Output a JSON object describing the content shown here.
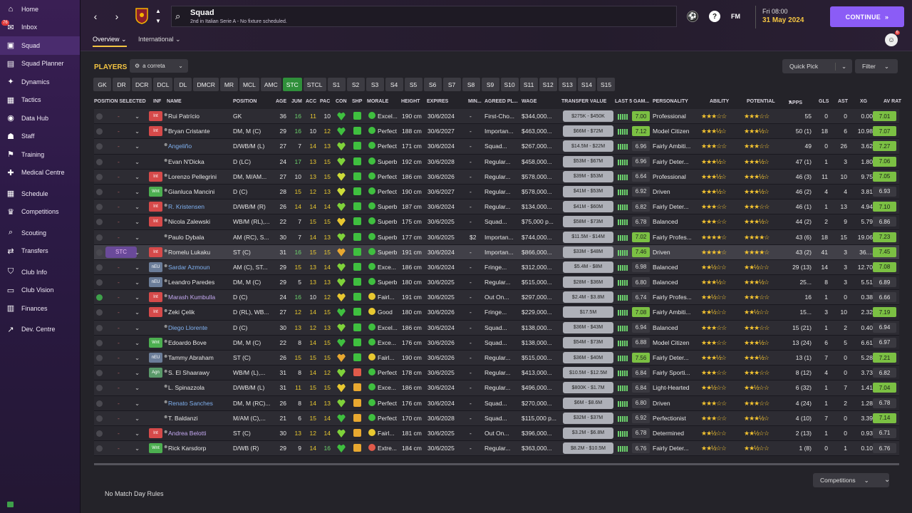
{
  "sidebar": {
    "items": [
      {
        "label": "Home",
        "icon": "home-icon",
        "glyph": "⌂"
      },
      {
        "label": "Inbox",
        "icon": "inbox-icon",
        "glyph": "✉",
        "badge": "76"
      },
      {
        "label": "Squad",
        "icon": "shirt-icon",
        "glyph": "▣",
        "active": true
      },
      {
        "label": "Squad Planner",
        "icon": "planner-icon",
        "glyph": "▤"
      },
      {
        "label": "Dynamics",
        "icon": "dynamics-icon",
        "glyph": "✦"
      },
      {
        "label": "Tactics",
        "icon": "tactics-icon",
        "glyph": "▦"
      },
      {
        "label": "Data Hub",
        "icon": "data-hub-icon",
        "glyph": "◉"
      },
      {
        "label": "Staff",
        "icon": "staff-icon",
        "glyph": "☗"
      },
      {
        "label": "Training",
        "icon": "training-icon",
        "glyph": "⚑"
      },
      {
        "label": "Medical Centre",
        "icon": "medical-icon",
        "glyph": "✚"
      },
      {
        "label": "Schedule",
        "icon": "schedule-icon",
        "glyph": "▦",
        "gap": true
      },
      {
        "label": "Competitions",
        "icon": "trophy-icon",
        "glyph": "♛"
      },
      {
        "label": "Scouting",
        "icon": "scouting-icon",
        "glyph": "⌕",
        "gap": true
      },
      {
        "label": "Transfers",
        "icon": "transfers-icon",
        "glyph": "⇄"
      },
      {
        "label": "Club Info",
        "icon": "club-info-icon",
        "glyph": "⛉",
        "gap": true
      },
      {
        "label": "Club Vision",
        "icon": "club-vision-icon",
        "glyph": "▭"
      },
      {
        "label": "Finances",
        "icon": "finances-icon",
        "glyph": "▥"
      },
      {
        "label": "Dev. Centre",
        "icon": "dev-centre-icon",
        "glyph": "↗",
        "gap": true
      }
    ]
  },
  "header": {
    "title": "Squad",
    "subtitle": "2nd in Italian Serie A - No fixture scheduled.",
    "fm_label": "FM",
    "date_day": "Fri 08:00",
    "date": "31 May 2024",
    "continue_label": "CONTINUE",
    "user_badge": "6"
  },
  "subtabs": [
    {
      "label": "Overview",
      "active": true
    },
    {
      "label": "International"
    }
  ],
  "players_title": "PLAYERS",
  "view_select": "a correta",
  "quick_pick": "Quick Pick",
  "filter": "Filter",
  "positions": [
    "GK",
    "DR",
    "DCR",
    "DCL",
    "DL",
    "DMCR",
    "MR",
    "MCL",
    "AMC",
    "STC",
    "STCL",
    "S1",
    "S2",
    "S3",
    "S4",
    "S5",
    "S6",
    "S7",
    "S8",
    "S9",
    "S10",
    "S11",
    "S12",
    "S13",
    "S14",
    "S15"
  ],
  "active_position": "STC",
  "columns": {
    "pos_sel": "POSITION SELECTED",
    "inf": "INF",
    "name": "NAME",
    "position": "POSITION",
    "age": "AGE",
    "jum": "JUM",
    "acc": "ACC",
    "pac": "PAC",
    "con": "CON",
    "shp": "SHP",
    "morale": "MORALE",
    "height": "HEIGHT",
    "expires": "EXPIRES",
    "min": "MIN...",
    "agreed": "AGREED PL...",
    "wage": "WAGE",
    "tv": "TRANSFER VALUE",
    "last5": "LAST 5 GAM...",
    "personality": "PERSONALITY",
    "ability": "ABILITY",
    "potential": "POTENTIAL",
    "apps": "APPS",
    "gls": "GLS",
    "ast": "AST",
    "xg": "XG",
    "avrat": "AV RAT"
  },
  "players": [
    {
      "sel": "-",
      "inf": "Int",
      "name": "Rui Patrício",
      "pos": "GK",
      "age": "36",
      "jum": "16",
      "acc": "11",
      "pac": "10",
      "morale": "Excel...",
      "height": "190 cm",
      "expires": "30/6/2024",
      "min": "-",
      "agreed": "First-Cho...",
      "wage": "$344,000...",
      "tv": "$275K - $450K",
      "last5": "7.00",
      "pers": "Professional",
      "ab": "★★★☆☆",
      "pot": "★★★☆☆",
      "apps": "55",
      "gls": "0",
      "ast": "0",
      "xg": "0.00",
      "av": "7.01"
    },
    {
      "sel": "-",
      "inf": "Int",
      "name": "Bryan Cristante",
      "pos": "DM, M (C)",
      "age": "29",
      "jum": "16",
      "acc": "10",
      "pac": "12",
      "morale": "Perfect",
      "height": "188 cm",
      "expires": "30/6/2027",
      "min": "-",
      "agreed": "Importan...",
      "wage": "$463,000...",
      "tv": "$66M - $72M",
      "last5": "7.12",
      "pers": "Model Citizen",
      "ab": "★★★½☆",
      "pot": "★★★½☆",
      "apps": "50 (1)",
      "gls": "18",
      "ast": "6",
      "xg": "10.98",
      "av": "7.07"
    },
    {
      "sel": "-",
      "inf": "",
      "name": "Angeliño",
      "pos": "D/WB/M (L)",
      "age": "27",
      "jum": "7",
      "acc": "14",
      "pac": "13",
      "morale": "Perfect",
      "height": "171 cm",
      "expires": "30/6/2024",
      "min": "-",
      "agreed": "Squad...",
      "wage": "$267,000...",
      "tv": "$14.5M - $22M",
      "last5": "6.96",
      "pers": "Fairly Ambiti...",
      "ab": "★★★☆☆",
      "pot": "★★★☆☆",
      "apps": "49",
      "gls": "0",
      "ast": "26",
      "xg": "3.62",
      "av": "7.27"
    },
    {
      "sel": "-",
      "inf": "",
      "name": "Evan N'Dicka",
      "pos": "D (LC)",
      "age": "24",
      "jum": "17",
      "acc": "13",
      "pac": "15",
      "morale": "Superb",
      "height": "192 cm",
      "expires": "30/6/2028",
      "min": "-",
      "agreed": "Regular...",
      "wage": "$458,000...",
      "tv": "$53M - $67M",
      "last5": "6.96",
      "pers": "Fairly Deter...",
      "ab": "★★★½☆",
      "pot": "★★★½☆",
      "apps": "47 (1)",
      "gls": "1",
      "ast": "3",
      "xg": "1.80",
      "av": "7.06"
    },
    {
      "sel": "-",
      "inf": "Int",
      "name": "Lorenzo Pellegrini",
      "pos": "DM, M/AM...",
      "age": "27",
      "jum": "10",
      "acc": "13",
      "pac": "15",
      "morale": "Perfect",
      "height": "186 cm",
      "expires": "30/6/2026",
      "min": "-",
      "agreed": "Regular...",
      "wage": "$578,000...",
      "tv": "$39M - $53M",
      "last5": "6.64",
      "pers": "Professional",
      "ab": "★★★½☆",
      "pot": "★★★½☆",
      "apps": "46 (3)",
      "gls": "11",
      "ast": "10",
      "xg": "9.75",
      "av": "7.05"
    },
    {
      "sel": "-",
      "inf": "Wnt",
      "name": "Gianluca Mancini",
      "pos": "D (C)",
      "age": "28",
      "jum": "15",
      "acc": "12",
      "pac": "13",
      "morale": "Perfect",
      "height": "190 cm",
      "expires": "30/6/2027",
      "min": "-",
      "agreed": "Regular...",
      "wage": "$578,000...",
      "tv": "$41M - $53M",
      "last5": "6.92",
      "pers": "Driven",
      "ab": "★★★½☆",
      "pot": "★★★½☆",
      "apps": "46 (2)",
      "gls": "4",
      "ast": "4",
      "xg": "3.81",
      "av": "6.93"
    },
    {
      "sel": "-",
      "inf": "Int",
      "name": "R. Kristensen",
      "pos": "D/WB/M (R)",
      "age": "26",
      "jum": "14",
      "acc": "14",
      "pac": "14",
      "morale": "Superb",
      "height": "187 cm",
      "expires": "30/6/2024",
      "min": "-",
      "agreed": "Regular...",
      "wage": "$134,000...",
      "tv": "$41M - $60M",
      "last5": "6.82",
      "pers": "Fairly Deter...",
      "ab": "★★★☆☆",
      "pot": "★★★☆☆",
      "apps": "46 (1)",
      "gls": "1",
      "ast": "13",
      "xg": "4.94",
      "av": "7.10"
    },
    {
      "sel": "-",
      "inf": "Int",
      "name": "Nicola Zalewski",
      "pos": "WB/M (RL),...",
      "age": "22",
      "jum": "7",
      "acc": "15",
      "pac": "15",
      "morale": "Superb",
      "height": "175 cm",
      "expires": "30/6/2025",
      "min": "-",
      "agreed": "Squad...",
      "wage": "$75,000 p...",
      "tv": "$58M - $73M",
      "last5": "6.78",
      "pers": "Balanced",
      "ab": "★★★☆☆",
      "pot": "★★★½☆",
      "apps": "44 (2)",
      "gls": "2",
      "ast": "9",
      "xg": "5.79",
      "av": "6.86"
    },
    {
      "sel": "-",
      "inf": "",
      "name": "Paulo Dybala",
      "pos": "AM (RC), S...",
      "age": "30",
      "jum": "7",
      "acc": "14",
      "pac": "13",
      "morale": "Superb",
      "height": "177 cm",
      "expires": "30/6/2025",
      "min": "$2...",
      "agreed": "Importan...",
      "wage": "$744,000...",
      "tv": "$11.5M - $14M",
      "last5": "7.02",
      "pers": "Fairly Profes...",
      "ab": "★★★★☆",
      "pot": "★★★★☆",
      "apps": "43 (6)",
      "gls": "18",
      "ast": "15",
      "xg": "19.06",
      "av": "7.23"
    },
    {
      "sel": "STC",
      "inf": "Int",
      "name": "Romelu Lukaku",
      "pos": "ST (C)",
      "age": "31",
      "jum": "16",
      "acc": "15",
      "pac": "15",
      "morale": "Superb",
      "height": "191 cm",
      "expires": "30/6/2024",
      "min": "-",
      "agreed": "Importan...",
      "wage": "$866,000...",
      "tv": "$33M - $48M",
      "last5": "7.46",
      "pers": "Driven",
      "ab": "★★★★☆",
      "pot": "★★★★☆",
      "apps": "43 (2)",
      "gls": "41",
      "ast": "3",
      "xg": "36....",
      "av": "7.45",
      "selected": true
    },
    {
      "sel": "-",
      "inf": "nEU",
      "name": "Sardar Azmoun",
      "pos": "AM (C), ST...",
      "age": "29",
      "jum": "15",
      "acc": "13",
      "pac": "14",
      "morale": "Exce...",
      "height": "186 cm",
      "expires": "30/6/2024",
      "min": "-",
      "agreed": "Fringe...",
      "wage": "$312,000...",
      "tv": "$5.4M - $8M",
      "last5": "6.98",
      "pers": "Balanced",
      "ab": "★★½☆☆",
      "pot": "★★½☆☆",
      "apps": "29 (13)",
      "gls": "14",
      "ast": "3",
      "xg": "12.70",
      "av": "7.08"
    },
    {
      "sel": "-",
      "inf": "nEU",
      "name": "Leandro Paredes",
      "pos": "DM, M (C)",
      "age": "29",
      "jum": "5",
      "acc": "13",
      "pac": "13",
      "morale": "Superb",
      "height": "180 cm",
      "expires": "30/6/2025",
      "min": "-",
      "agreed": "Regular...",
      "wage": "$515,000...",
      "tv": "$28M - $36M",
      "last5": "6.80",
      "pers": "Balanced",
      "ab": "★★★½☆",
      "pot": "★★★½☆",
      "apps": "25...",
      "gls": "8",
      "ast": "3",
      "xg": "5.51",
      "av": "6.89"
    },
    {
      "sel": "-",
      "inf": "Int",
      "name": "Marash Kumbulla",
      "pos": "D (C)",
      "age": "24",
      "jum": "16",
      "acc": "10",
      "pac": "12",
      "morale": "Fairl...",
      "height": "191 cm",
      "expires": "30/6/2025",
      "min": "-",
      "agreed": "Out On...",
      "wage": "$297,000...",
      "tv": "$2.4M - $3.8M",
      "last5": "6.74",
      "pers": "Fairly Profes...",
      "ab": "★★½☆☆",
      "pot": "★★★☆☆",
      "apps": "16",
      "gls": "1",
      "ast": "0",
      "xg": "0.38",
      "av": "6.66",
      "checked": true
    },
    {
      "sel": "-",
      "inf": "Int",
      "name": "Zeki Çelik",
      "pos": "D (RL), WB...",
      "age": "27",
      "jum": "12",
      "acc": "14",
      "pac": "15",
      "morale": "Good",
      "height": "180 cm",
      "expires": "30/6/2026",
      "min": "-",
      "agreed": "Fringe...",
      "wage": "$229,000...",
      "tv": "$17.5M",
      "last5": "7.08",
      "pers": "Fairly Ambiti...",
      "ab": "★★½☆☆",
      "pot": "★★½☆☆",
      "apps": "15...",
      "gls": "3",
      "ast": "10",
      "xg": "2.32",
      "av": "7.19"
    },
    {
      "sel": "-",
      "inf": "",
      "name": "Diego Llorente",
      "pos": "D (C)",
      "age": "30",
      "jum": "13",
      "acc": "12",
      "pac": "13",
      "morale": "Excel...",
      "height": "186 cm",
      "expires": "30/6/2024",
      "min": "-",
      "agreed": "Squad...",
      "wage": "$138,000...",
      "tv": "$36M - $43M",
      "last5": "6.94",
      "pers": "Balanced",
      "ab": "★★★☆☆",
      "pot": "★★★☆☆",
      "apps": "15 (21)",
      "gls": "1",
      "ast": "2",
      "xg": "0.40",
      "av": "6.94"
    },
    {
      "sel": "-",
      "inf": "Wnt",
      "name": "Edoardo Bove",
      "pos": "DM, M (C)",
      "age": "22",
      "jum": "8",
      "acc": "14",
      "pac": "15",
      "morale": "Exce...",
      "height": "176 cm",
      "expires": "30/6/2026",
      "min": "-",
      "agreed": "Squad...",
      "wage": "$138,000...",
      "tv": "$54M - $73M",
      "last5": "6.88",
      "pers": "Model Citizen",
      "ab": "★★★☆☆",
      "pot": "★★★½☆",
      "apps": "13 (24)",
      "gls": "6",
      "ast": "5",
      "xg": "6.61",
      "av": "6.97"
    },
    {
      "sel": "-",
      "inf": "nEU",
      "name": "Tammy Abraham",
      "pos": "ST (C)",
      "age": "26",
      "jum": "15",
      "acc": "15",
      "pac": "15",
      "morale": "Fairl...",
      "height": "190 cm",
      "expires": "30/6/2026",
      "min": "-",
      "agreed": "Regular...",
      "wage": "$515,000...",
      "tv": "$36M - $40M",
      "last5": "7.56",
      "pers": "Fairly Deter...",
      "ab": "★★★½☆",
      "pot": "★★★½☆",
      "apps": "13 (1)",
      "gls": "7",
      "ast": "0",
      "xg": "5.28",
      "av": "7.21"
    },
    {
      "sel": "-",
      "inf": "Agn",
      "name": "S. El Shaarawy",
      "pos": "WB/M (L),...",
      "age": "31",
      "jum": "8",
      "acc": "14",
      "pac": "12",
      "morale": "Perfect",
      "height": "178 cm",
      "expires": "30/6/2025",
      "min": "-",
      "agreed": "Regular...",
      "wage": "$413,000...",
      "tv": "$10.5M - $12.5M",
      "last5": "6.84",
      "pers": "Fairly Sporti...",
      "ab": "★★★☆☆",
      "pot": "★★★☆☆",
      "apps": "8 (12)",
      "gls": "4",
      "ast": "0",
      "xg": "3.73",
      "av": "6.82"
    },
    {
      "sel": "-",
      "inf": "",
      "name": "L. Spinazzola",
      "pos": "D/WB/M (L)",
      "age": "31",
      "jum": "11",
      "acc": "15",
      "pac": "15",
      "morale": "Exce...",
      "height": "186 cm",
      "expires": "30/6/2024",
      "min": "-",
      "agreed": "Regular...",
      "wage": "$496,000...",
      "tv": "$800K - $1.7M",
      "last5": "6.84",
      "pers": "Light-Hearted",
      "ab": "★★½☆☆",
      "pot": "★★½☆☆",
      "apps": "6 (32)",
      "gls": "1",
      "ast": "7",
      "xg": "1.41",
      "av": "7.04"
    },
    {
      "sel": "-",
      "inf": "",
      "name": "Renato Sanches",
      "pos": "DM, M (RC)...",
      "age": "26",
      "jum": "8",
      "acc": "14",
      "pac": "13",
      "morale": "Perfect",
      "height": "176 cm",
      "expires": "30/6/2024",
      "min": "-",
      "agreed": "Squad...",
      "wage": "$270,000...",
      "tv": "$6M - $8.6M",
      "last5": "6.80",
      "pers": "Driven",
      "ab": "★★★☆☆",
      "pot": "★★★☆☆",
      "apps": "4 (24)",
      "gls": "1",
      "ast": "2",
      "xg": "1.28",
      "av": "6.78"
    },
    {
      "sel": "-",
      "inf": "",
      "name": "T. Baldanzi",
      "pos": "M/AM (C),...",
      "age": "21",
      "jum": "6",
      "acc": "15",
      "pac": "14",
      "morale": "Perfect",
      "height": "170 cm",
      "expires": "30/6/2028",
      "min": "-",
      "agreed": "Squad...",
      "wage": "$115,000 p...",
      "tv": "$32M - $37M",
      "last5": "6.92",
      "pers": "Perfectionist",
      "ab": "★★★☆☆",
      "pot": "★★★½☆",
      "apps": "4 (10)",
      "gls": "7",
      "ast": "0",
      "xg": "3.39",
      "av": "7.14"
    },
    {
      "sel": "-",
      "inf": "Int",
      "name": "Andrea Belotti",
      "pos": "ST (C)",
      "age": "30",
      "jum": "13",
      "acc": "12",
      "pac": "14",
      "morale": "Fairl...",
      "height": "181 cm",
      "expires": "30/6/2025",
      "min": "-",
      "agreed": "Out On...",
      "wage": "$396,000...",
      "tv": "$3.2M - $6.8M",
      "last5": "6.78",
      "pers": "Determined",
      "ab": "★★½☆☆",
      "pot": "★★½☆☆",
      "apps": "2 (13)",
      "gls": "1",
      "ast": "0",
      "xg": "0.93",
      "av": "6.71"
    },
    {
      "sel": "-",
      "inf": "Wnt",
      "name": "Rick Karsdorp",
      "pos": "D/WB (R)",
      "age": "29",
      "jum": "9",
      "acc": "14",
      "pac": "16",
      "morale": "Extre...",
      "height": "184 cm",
      "expires": "30/6/2025",
      "min": "-",
      "agreed": "Regular...",
      "wage": "$363,000...",
      "tv": "$8.2M - $10.5M",
      "last5": "6.76",
      "pers": "Fairly Deter...",
      "ab": "★★½☆☆",
      "pot": "★★½☆☆",
      "apps": "1 (8)",
      "gls": "0",
      "ast": "1",
      "xg": "0.10",
      "av": "6.76"
    }
  ],
  "footer": {
    "no_match": "No Match Day Rules",
    "competitions": "Competitions"
  }
}
